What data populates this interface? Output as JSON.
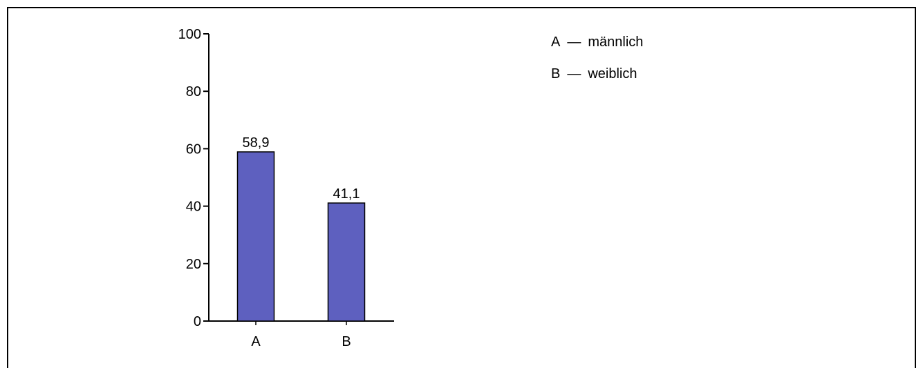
{
  "chart_data": {
    "type": "bar",
    "categories": [
      "A",
      "B"
    ],
    "values": [
      58.9,
      41.1
    ],
    "value_labels": [
      "58,9",
      "41,1"
    ],
    "ylim": [
      0,
      100
    ],
    "yticks": [
      "0",
      "20",
      "40",
      "60",
      "80",
      "100"
    ],
    "ytick_values": [
      0,
      20,
      40,
      60,
      80,
      100
    ],
    "title": "",
    "xlabel": "",
    "ylabel": "",
    "grid": false,
    "legend_position": "top-right",
    "bar_color": "#5e60bf",
    "legend": [
      {
        "key": "A",
        "label": "männlich"
      },
      {
        "key": "B",
        "label": "weiblich"
      }
    ]
  },
  "legend_dash": "—"
}
